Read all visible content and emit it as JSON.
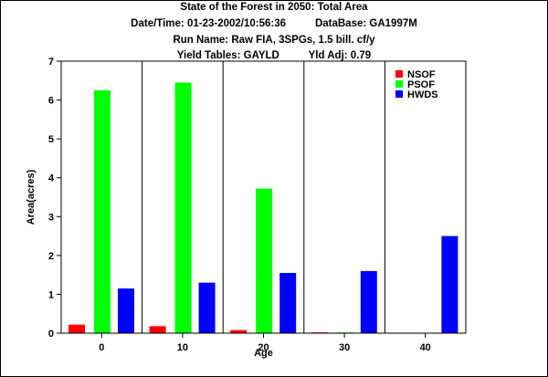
{
  "chart_data": {
    "type": "bar",
    "title": "State of the Forest in 2050: Total Area",
    "subtitle_lines": [
      "Date/Time: 01-23-2002/10:56:36          DataBase: GA1997M",
      "Run Name: Raw FIA, 3SPGs, 1.5 bill. cf/y",
      "Yield Tables: GAYLD          Yld Adj: 0.79"
    ],
    "xlabel": "Age",
    "ylabel": "Area(acres)",
    "categories": [
      "0",
      "10",
      "20",
      "30",
      "40"
    ],
    "ylim": [
      0,
      7
    ],
    "yticks": [
      "0",
      "1",
      "2",
      "3",
      "4",
      "5",
      "6",
      "7"
    ],
    "grid": "vertical lines between categories",
    "legend_position": "top-right",
    "series": [
      {
        "name": "NSOF",
        "color": "#ff0000",
        "values": [
          0.22,
          0.18,
          0.08,
          0.02,
          0.0
        ]
      },
      {
        "name": "PSOF",
        "color": "#00ff00",
        "values": [
          6.25,
          6.45,
          3.72,
          0.02,
          0.0
        ]
      },
      {
        "name": "HWDS",
        "color": "#0000ff",
        "values": [
          1.15,
          1.3,
          1.55,
          1.6,
          2.5
        ]
      }
    ]
  }
}
